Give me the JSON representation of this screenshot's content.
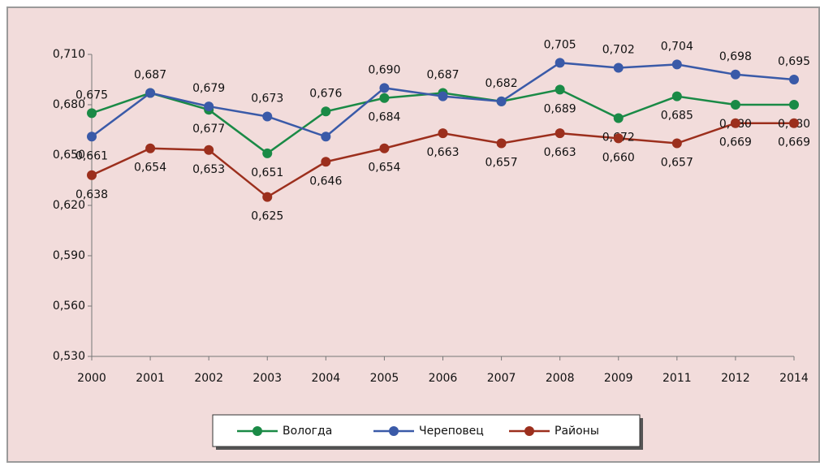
{
  "chart_data": {
    "type": "line",
    "categories": [
      "2000",
      "2001",
      "2002",
      "2003",
      "2004",
      "2005",
      "2006",
      "2007",
      "2008",
      "2009",
      "2011",
      "2012",
      "2014"
    ],
    "series": [
      {
        "name": "Вологда",
        "color": "#1a8a46",
        "values": [
          0.675,
          0.687,
          0.677,
          0.651,
          0.676,
          0.684,
          0.687,
          0.682,
          0.689,
          0.672,
          0.685,
          0.68,
          0.68
        ],
        "value_labels": [
          "0,675",
          "0,687",
          "0,677",
          "0,651",
          "0,676",
          "0,684",
          "0,687",
          "0,682",
          "0,689",
          "0,672",
          "0,685",
          "0,680",
          "0,680"
        ]
      },
      {
        "name": "Череповец",
        "color": "#3a5aa8",
        "values": [
          0.661,
          0.687,
          0.679,
          0.673,
          0.661,
          0.69,
          0.685,
          0.682,
          0.705,
          0.702,
          0.704,
          0.698,
          0.695
        ],
        "value_labels": [
          "0,661",
          null,
          "0,679",
          "0,673",
          null,
          "0,690",
          null,
          null,
          "0,705",
          "0,702",
          "0,704",
          "0,698",
          "0,695"
        ]
      },
      {
        "name": "Районы",
        "color": "#9c2f1d",
        "values": [
          0.638,
          0.654,
          0.653,
          0.625,
          0.646,
          0.654,
          0.663,
          0.657,
          0.663,
          0.66,
          0.657,
          0.669,
          0.669
        ],
        "value_labels": [
          "0,638",
          "0,654",
          "0,653",
          "0,625",
          "0,646",
          "0,654",
          "0,663",
          "0,657",
          "0,663",
          "0,660",
          "0,657",
          "0,669",
          "0,669"
        ]
      }
    ],
    "ylim": [
      0.53,
      0.71
    ],
    "yticks": [
      {
        "value": 0.53,
        "label": "0,530"
      },
      {
        "value": 0.56,
        "label": "0,560"
      },
      {
        "value": 0.59,
        "label": "0,590"
      },
      {
        "value": 0.62,
        "label": "0,620"
      },
      {
        "value": 0.65,
        "label": "0,650"
      },
      {
        "value": 0.68,
        "label": "0,680"
      },
      {
        "value": 0.71,
        "label": "0,710"
      }
    ],
    "legend": "bottom"
  }
}
